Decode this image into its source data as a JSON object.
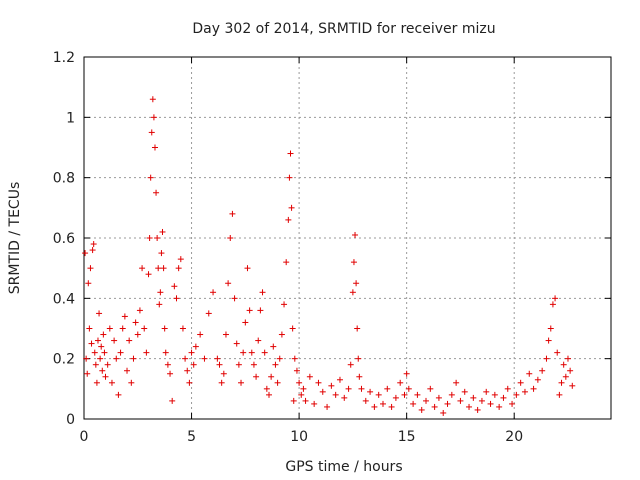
{
  "chart_data": {
    "type": "scatter",
    "title": "Day 302 of 2014, SRMTID for receiver mizu",
    "xlabel": "GPS time / hours",
    "ylabel": "SRMTID / TECUs",
    "xlim": [
      0,
      24.5
    ],
    "ylim": [
      0,
      1.2
    ],
    "x_ticks": [
      0,
      5,
      10,
      15,
      20
    ],
    "x_tick_labels": [
      "0",
      "5",
      "10",
      "15",
      "20"
    ],
    "y_ticks": [
      0,
      0.2,
      0.4,
      0.6,
      0.8,
      1.0,
      1.2
    ],
    "y_tick_labels": [
      "0",
      "0.2",
      "0.4",
      "0.6",
      "0.8",
      "1",
      "1.2"
    ],
    "grid": true,
    "marker": "+",
    "color": "#e00000",
    "series": [
      {
        "name": "SRMTID",
        "points": [
          [
            0.05,
            0.55
          ],
          [
            0.1,
            0.2
          ],
          [
            0.15,
            0.15
          ],
          [
            0.2,
            0.45
          ],
          [
            0.25,
            0.3
          ],
          [
            0.3,
            0.5
          ],
          [
            0.35,
            0.25
          ],
          [
            0.4,
            0.56
          ],
          [
            0.45,
            0.58
          ],
          [
            0.5,
            0.22
          ],
          [
            0.55,
            0.18
          ],
          [
            0.6,
            0.12
          ],
          [
            0.65,
            0.26
          ],
          [
            0.7,
            0.35
          ],
          [
            0.75,
            0.2
          ],
          [
            0.8,
            0.24
          ],
          [
            0.85,
            0.16
          ],
          [
            0.9,
            0.28
          ],
          [
            0.95,
            0.22
          ],
          [
            1.0,
            0.14
          ],
          [
            1.1,
            0.18
          ],
          [
            1.2,
            0.3
          ],
          [
            1.3,
            0.12
          ],
          [
            1.4,
            0.26
          ],
          [
            1.5,
            0.2
          ],
          [
            1.6,
            0.08
          ],
          [
            1.7,
            0.22
          ],
          [
            1.8,
            0.3
          ],
          [
            1.9,
            0.34
          ],
          [
            2.0,
            0.16
          ],
          [
            2.1,
            0.26
          ],
          [
            2.2,
            0.12
          ],
          [
            2.3,
            0.2
          ],
          [
            2.4,
            0.32
          ],
          [
            2.5,
            0.28
          ],
          [
            2.6,
            0.36
          ],
          [
            2.7,
            0.5
          ],
          [
            2.8,
            0.3
          ],
          [
            2.9,
            0.22
          ],
          [
            3.0,
            0.48
          ],
          [
            3.05,
            0.6
          ],
          [
            3.1,
            0.8
          ],
          [
            3.15,
            0.95
          ],
          [
            3.2,
            1.06
          ],
          [
            3.25,
            1.0
          ],
          [
            3.3,
            0.9
          ],
          [
            3.35,
            0.75
          ],
          [
            3.4,
            0.6
          ],
          [
            3.45,
            0.5
          ],
          [
            3.5,
            0.38
          ],
          [
            3.55,
            0.42
          ],
          [
            3.6,
            0.55
          ],
          [
            3.65,
            0.62
          ],
          [
            3.7,
            0.5
          ],
          [
            3.75,
            0.3
          ],
          [
            3.8,
            0.22
          ],
          [
            3.9,
            0.18
          ],
          [
            4.0,
            0.15
          ],
          [
            4.1,
            0.06
          ],
          [
            4.2,
            0.44
          ],
          [
            4.3,
            0.4
          ],
          [
            4.4,
            0.5
          ],
          [
            4.5,
            0.53
          ],
          [
            4.6,
            0.3
          ],
          [
            4.7,
            0.2
          ],
          [
            4.8,
            0.16
          ],
          [
            4.9,
            0.12
          ],
          [
            5.0,
            0.22
          ],
          [
            5.1,
            0.18
          ],
          [
            5.2,
            0.24
          ],
          [
            5.4,
            0.28
          ],
          [
            5.6,
            0.2
          ],
          [
            5.8,
            0.35
          ],
          [
            6.0,
            0.42
          ],
          [
            6.2,
            0.2
          ],
          [
            6.3,
            0.18
          ],
          [
            6.4,
            0.12
          ],
          [
            6.5,
            0.15
          ],
          [
            6.6,
            0.28
          ],
          [
            6.7,
            0.45
          ],
          [
            6.8,
            0.6
          ],
          [
            6.9,
            0.68
          ],
          [
            7.0,
            0.4
          ],
          [
            7.1,
            0.25
          ],
          [
            7.2,
            0.18
          ],
          [
            7.3,
            0.12
          ],
          [
            7.4,
            0.22
          ],
          [
            7.5,
            0.32
          ],
          [
            7.6,
            0.5
          ],
          [
            7.7,
            0.36
          ],
          [
            7.8,
            0.22
          ],
          [
            7.9,
            0.18
          ],
          [
            8.0,
            0.14
          ],
          [
            8.1,
            0.26
          ],
          [
            8.2,
            0.36
          ],
          [
            8.3,
            0.42
          ],
          [
            8.4,
            0.22
          ],
          [
            8.5,
            0.1
          ],
          [
            8.6,
            0.08
          ],
          [
            8.7,
            0.14
          ],
          [
            8.8,
            0.24
          ],
          [
            8.9,
            0.18
          ],
          [
            9.0,
            0.12
          ],
          [
            9.1,
            0.2
          ],
          [
            9.2,
            0.28
          ],
          [
            9.3,
            0.38
          ],
          [
            9.4,
            0.52
          ],
          [
            9.5,
            0.66
          ],
          [
            9.55,
            0.8
          ],
          [
            9.6,
            0.88
          ],
          [
            9.65,
            0.7
          ],
          [
            9.7,
            0.3
          ],
          [
            9.75,
            0.06
          ],
          [
            9.8,
            0.2
          ],
          [
            9.9,
            0.16
          ],
          [
            10.0,
            0.12
          ],
          [
            10.1,
            0.08
          ],
          [
            10.2,
            0.1
          ],
          [
            10.3,
            0.06
          ],
          [
            10.5,
            0.14
          ],
          [
            10.7,
            0.05
          ],
          [
            10.9,
            0.12
          ],
          [
            11.1,
            0.09
          ],
          [
            11.3,
            0.04
          ],
          [
            11.5,
            0.11
          ],
          [
            11.7,
            0.08
          ],
          [
            11.9,
            0.13
          ],
          [
            12.1,
            0.07
          ],
          [
            12.3,
            0.1
          ],
          [
            12.4,
            0.18
          ],
          [
            12.5,
            0.42
          ],
          [
            12.55,
            0.52
          ],
          [
            12.6,
            0.61
          ],
          [
            12.65,
            0.45
          ],
          [
            12.7,
            0.3
          ],
          [
            12.75,
            0.2
          ],
          [
            12.8,
            0.14
          ],
          [
            12.9,
            0.1
          ],
          [
            13.1,
            0.06
          ],
          [
            13.3,
            0.09
          ],
          [
            13.5,
            0.04
          ],
          [
            13.7,
            0.08
          ],
          [
            13.9,
            0.05
          ],
          [
            14.1,
            0.1
          ],
          [
            14.3,
            0.04
          ],
          [
            14.5,
            0.07
          ],
          [
            14.7,
            0.12
          ],
          [
            14.9,
            0.08
          ],
          [
            15.0,
            0.15
          ],
          [
            15.1,
            0.1
          ],
          [
            15.3,
            0.05
          ],
          [
            15.5,
            0.08
          ],
          [
            15.7,
            0.03
          ],
          [
            15.9,
            0.06
          ],
          [
            16.1,
            0.1
          ],
          [
            16.3,
            0.04
          ],
          [
            16.5,
            0.07
          ],
          [
            16.7,
            0.02
          ],
          [
            16.9,
            0.05
          ],
          [
            17.1,
            0.08
          ],
          [
            17.3,
            0.12
          ],
          [
            17.5,
            0.06
          ],
          [
            17.7,
            0.09
          ],
          [
            17.9,
            0.04
          ],
          [
            18.1,
            0.07
          ],
          [
            18.3,
            0.03
          ],
          [
            18.5,
            0.06
          ],
          [
            18.7,
            0.09
          ],
          [
            18.9,
            0.05
          ],
          [
            19.1,
            0.08
          ],
          [
            19.3,
            0.04
          ],
          [
            19.5,
            0.07
          ],
          [
            19.7,
            0.1
          ],
          [
            19.9,
            0.05
          ],
          [
            20.1,
            0.08
          ],
          [
            20.3,
            0.12
          ],
          [
            20.5,
            0.09
          ],
          [
            20.7,
            0.15
          ],
          [
            20.9,
            0.1
          ],
          [
            21.1,
            0.13
          ],
          [
            21.3,
            0.16
          ],
          [
            21.5,
            0.2
          ],
          [
            21.6,
            0.26
          ],
          [
            21.7,
            0.3
          ],
          [
            21.8,
            0.38
          ],
          [
            21.9,
            0.4
          ],
          [
            22.0,
            0.22
          ],
          [
            22.1,
            0.08
          ],
          [
            22.2,
            0.12
          ],
          [
            22.3,
            0.18
          ],
          [
            22.4,
            0.14
          ],
          [
            22.5,
            0.2
          ],
          [
            22.6,
            0.16
          ],
          [
            22.7,
            0.11
          ]
        ]
      }
    ]
  }
}
